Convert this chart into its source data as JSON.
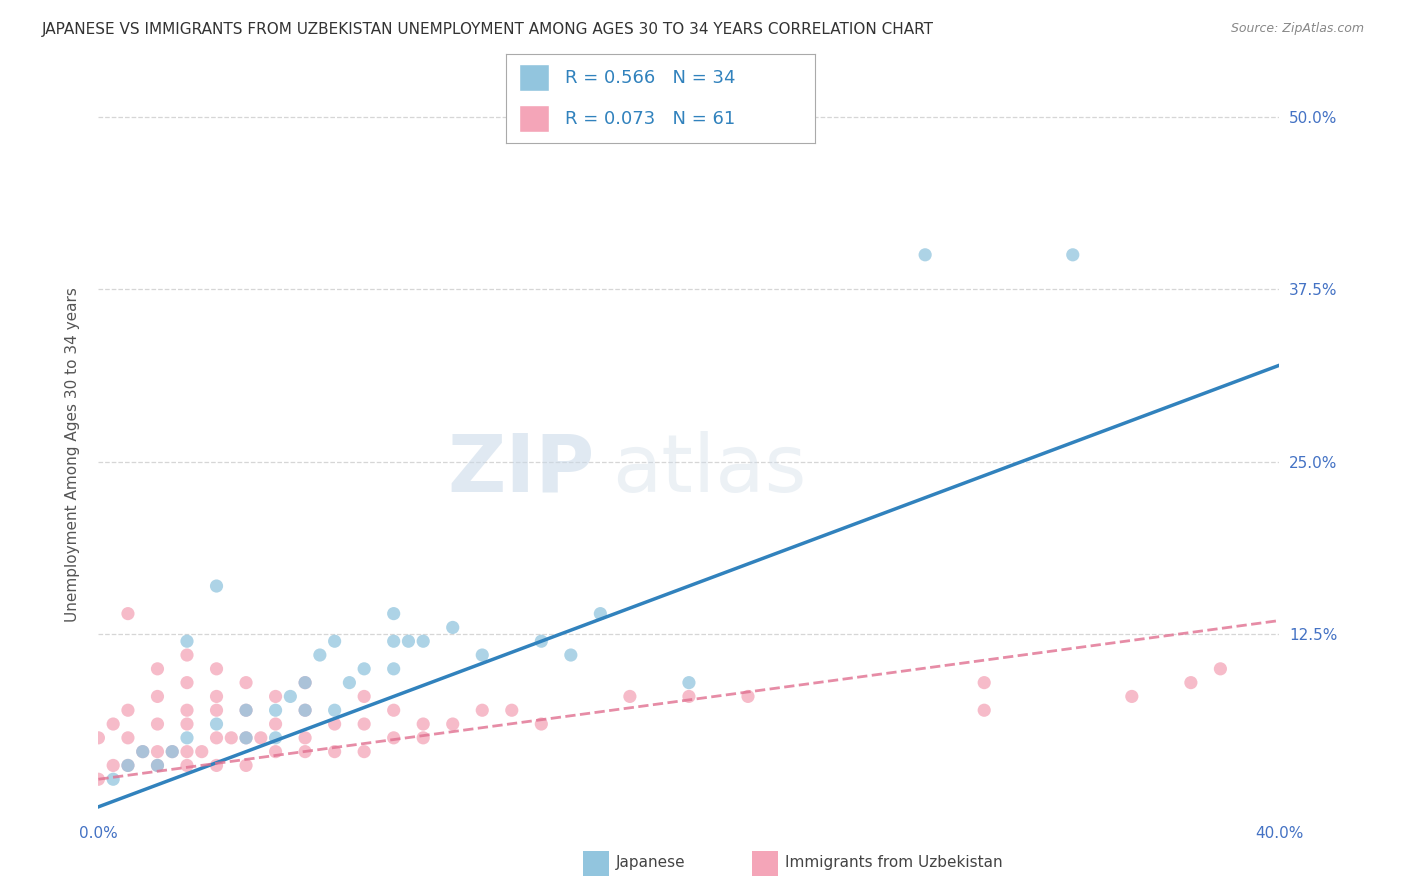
{
  "title": "JAPANESE VS IMMIGRANTS FROM UZBEKISTAN UNEMPLOYMENT AMONG AGES 30 TO 34 YEARS CORRELATION CHART",
  "source": "Source: ZipAtlas.com",
  "ylabel": "Unemployment Among Ages 30 to 34 years",
  "xlim": [
    0,
    0.4
  ],
  "ylim": [
    -0.01,
    0.52
  ],
  "xtick_positions": [
    0.0,
    0.4
  ],
  "xtick_labels": [
    "0.0%",
    "40.0%"
  ],
  "ytick_positions": [
    0.0,
    0.125,
    0.25,
    0.375,
    0.5
  ],
  "ytick_labels": [
    "",
    "12.5%",
    "25.0%",
    "37.5%",
    "50.0%"
  ],
  "legend1_R": "0.566",
  "legend1_N": "34",
  "legend2_R": "0.073",
  "legend2_N": "61",
  "legend1_label": "Japanese",
  "legend2_label": "Immigrants from Uzbekistan",
  "blue_color": "#92c5de",
  "pink_color": "#f4a5b8",
  "blue_line_color": "#3182bd",
  "pink_line_color": "#e07090",
  "watermark_zip": "ZIP",
  "watermark_atlas": "atlas",
  "grid_color": "#cccccc",
  "background_color": "#ffffff",
  "title_fontsize": 11,
  "source_fontsize": 9,
  "axis_label_fontsize": 11,
  "tick_fontsize": 11,
  "japanese_x": [
    0.005,
    0.01,
    0.015,
    0.02,
    0.025,
    0.03,
    0.03,
    0.04,
    0.04,
    0.05,
    0.05,
    0.06,
    0.06,
    0.065,
    0.07,
    0.07,
    0.075,
    0.08,
    0.08,
    0.085,
    0.09,
    0.1,
    0.1,
    0.1,
    0.105,
    0.11,
    0.12,
    0.13,
    0.15,
    0.16,
    0.17,
    0.2,
    0.28,
    0.33
  ],
  "japanese_y": [
    0.02,
    0.03,
    0.04,
    0.03,
    0.04,
    0.05,
    0.12,
    0.06,
    0.16,
    0.05,
    0.07,
    0.05,
    0.07,
    0.08,
    0.07,
    0.09,
    0.11,
    0.07,
    0.12,
    0.09,
    0.1,
    0.1,
    0.12,
    0.14,
    0.12,
    0.12,
    0.13,
    0.11,
    0.12,
    0.11,
    0.14,
    0.09,
    0.4,
    0.4
  ],
  "uzbek_x": [
    0.0,
    0.0,
    0.005,
    0.005,
    0.01,
    0.01,
    0.01,
    0.01,
    0.015,
    0.02,
    0.02,
    0.02,
    0.02,
    0.02,
    0.025,
    0.03,
    0.03,
    0.03,
    0.03,
    0.03,
    0.03,
    0.035,
    0.04,
    0.04,
    0.04,
    0.04,
    0.04,
    0.045,
    0.05,
    0.05,
    0.05,
    0.05,
    0.055,
    0.06,
    0.06,
    0.06,
    0.07,
    0.07,
    0.07,
    0.07,
    0.08,
    0.08,
    0.09,
    0.09,
    0.09,
    0.1,
    0.1,
    0.11,
    0.11,
    0.12,
    0.13,
    0.14,
    0.15,
    0.18,
    0.2,
    0.22,
    0.3,
    0.3,
    0.35,
    0.37,
    0.38
  ],
  "uzbek_y": [
    0.02,
    0.05,
    0.03,
    0.06,
    0.03,
    0.05,
    0.07,
    0.14,
    0.04,
    0.03,
    0.04,
    0.06,
    0.08,
    0.1,
    0.04,
    0.03,
    0.04,
    0.06,
    0.07,
    0.09,
    0.11,
    0.04,
    0.03,
    0.05,
    0.07,
    0.08,
    0.1,
    0.05,
    0.03,
    0.05,
    0.07,
    0.09,
    0.05,
    0.04,
    0.06,
    0.08,
    0.04,
    0.05,
    0.07,
    0.09,
    0.04,
    0.06,
    0.04,
    0.06,
    0.08,
    0.05,
    0.07,
    0.05,
    0.06,
    0.06,
    0.07,
    0.07,
    0.06,
    0.08,
    0.08,
    0.08,
    0.07,
    0.09,
    0.08,
    0.09,
    0.1
  ],
  "blue_line_x0": 0.0,
  "blue_line_y0": 0.0,
  "blue_line_x1": 0.4,
  "blue_line_y1": 0.32,
  "pink_line_x0": 0.0,
  "pink_line_y0": 0.02,
  "pink_line_x1": 0.4,
  "pink_line_y1": 0.135
}
